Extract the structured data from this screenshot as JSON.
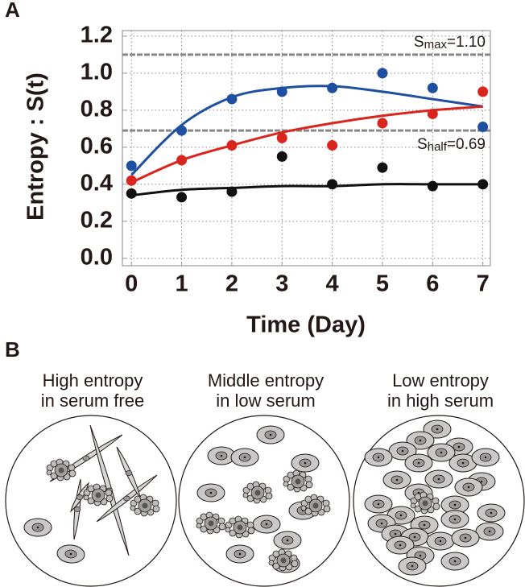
{
  "chart_data": {
    "type": "scatter",
    "panel_label": "A",
    "x_label": "Time (Day)",
    "y_label": "Entropy : S(t)",
    "x": [
      0,
      1,
      2,
      3,
      4,
      5,
      6,
      7
    ],
    "series": [
      {
        "color": "#1f4fa0",
        "values": [
          0.5,
          0.69,
          0.86,
          0.9,
          0.92,
          1.0,
          0.92,
          0.71
        ],
        "fit": [
          0.45,
          0.72,
          0.87,
          0.92,
          0.93,
          0.9,
          0.86,
          0.82
        ]
      },
      {
        "color": "#d9251d",
        "values": [
          0.42,
          0.53,
          0.61,
          0.65,
          0.61,
          0.73,
          0.78,
          0.9
        ],
        "fit": [
          0.41,
          0.53,
          0.61,
          0.68,
          0.73,
          0.77,
          0.8,
          0.82
        ]
      },
      {
        "color": "#111111",
        "values": [
          0.35,
          0.33,
          0.36,
          0.55,
          0.4,
          0.49,
          0.39,
          0.4
        ],
        "fit": [
          0.34,
          0.37,
          0.38,
          0.39,
          0.39,
          0.4,
          0.4,
          0.4
        ]
      }
    ],
    "reference_lines": [
      {
        "value": 1.1,
        "symbol": "S",
        "subscript": "max",
        "label": "=1.10",
        "color": "#888888"
      },
      {
        "value": 0.69,
        "symbol": "S",
        "subscript": "half",
        "label": "=0.69",
        "color": "#888888"
      }
    ],
    "xlim": [
      -0.18,
      7.15
    ],
    "ylim": [
      -0.04,
      1.23
    ],
    "xticks": [
      0,
      1,
      2,
      3,
      4,
      5,
      6,
      7
    ],
    "yticks": [
      {
        "value": 0,
        "label": "0.0"
      },
      0.2,
      0.4,
      0.6,
      0.8,
      {
        "value": 1,
        "label": "1.0"
      },
      1.2
    ],
    "grid": true
  },
  "panel_b": {
    "label": "B",
    "panels": [
      {
        "title": [
          "High entropy",
          "in serum free"
        ]
      },
      {
        "title": [
          "Middle entropy",
          "in low serum"
        ]
      },
      {
        "title": [
          "Low entropy",
          "in high serum"
        ]
      }
    ]
  }
}
